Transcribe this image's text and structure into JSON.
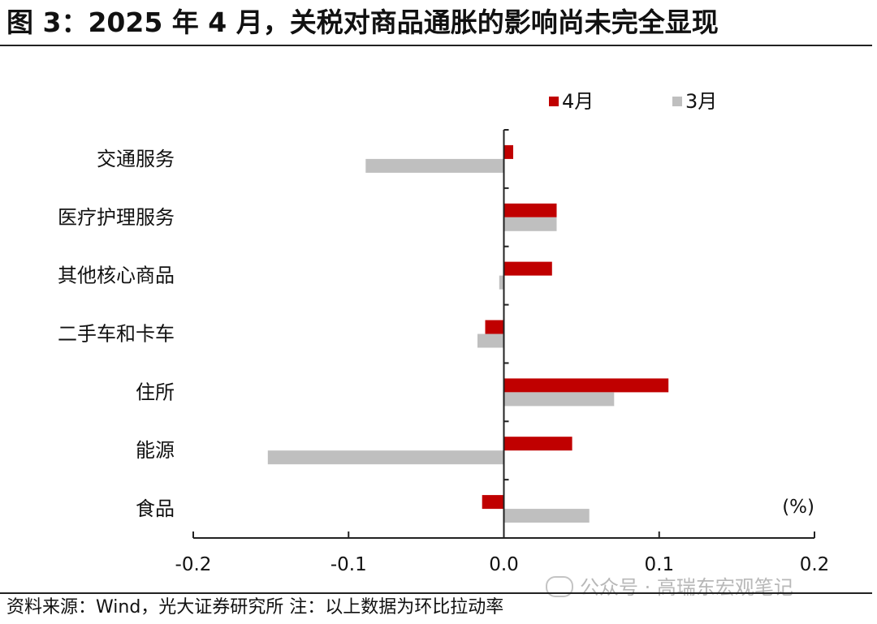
{
  "title": "图 3：2025 年 4 月，关税对商品通胀的影响尚未完全显现",
  "source": "资料来源：Wind，光大证券研究所    注：以上数据为环比拉动率",
  "watermark": "公众号 · 高瑞东宏观笔记",
  "colors": {
    "apr": "#c00000",
    "mar": "#bfbfbf"
  },
  "chart_data": {
    "type": "bar",
    "orientation": "horizontal",
    "categories": [
      "交通服务",
      "医疗护理服务",
      "其他核心商品",
      "二手车和卡车",
      "住所",
      "能源",
      "食品"
    ],
    "series": [
      {
        "name": "4月",
        "values": [
          0.006,
          0.034,
          0.031,
          -0.012,
          0.106,
          0.044,
          -0.014
        ]
      },
      {
        "name": "3月",
        "values": [
          -0.089,
          0.034,
          -0.003,
          -0.017,
          0.071,
          -0.152,
          0.055
        ]
      }
    ],
    "xlim": [
      -0.2,
      0.2
    ],
    "xticks": [
      -0.2,
      -0.1,
      0.0,
      0.1,
      0.2
    ],
    "xtick_labels": [
      "-0.2",
      "-0.1",
      "0.0",
      "0.1",
      "0.2"
    ],
    "unit_label": "(%)",
    "legend_position": "top-right",
    "grid": false
  }
}
